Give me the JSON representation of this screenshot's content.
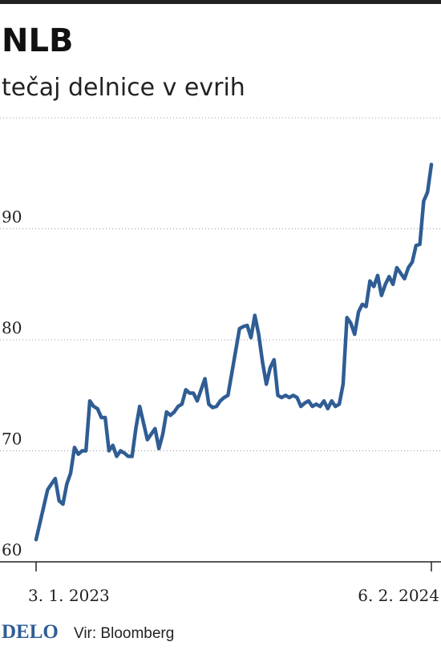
{
  "chart_data": {
    "type": "line",
    "title": "NLB",
    "subtitle": "tečaj delnice v evrih",
    "series": [
      {
        "name": "NLB",
        "color": "#2f5d94",
        "values": [
          62,
          63.5,
          65,
          66.5,
          67,
          67.5,
          65.5,
          65.2,
          67,
          68,
          70.3,
          69.7,
          70,
          70,
          74.5,
          74,
          73.8,
          73,
          73,
          70,
          70.5,
          69.5,
          70,
          69.8,
          69.5,
          69.5,
          72,
          74,
          72.5,
          71,
          71.5,
          72,
          70.2,
          71.5,
          73.5,
          73.2,
          73.5,
          74,
          74.2,
          75.5,
          75.2,
          75.2,
          74.5,
          75.5,
          76.5,
          74.2,
          73.9,
          74,
          74.5,
          74.8,
          75,
          77,
          79,
          81,
          81.2,
          81.3,
          80.2,
          82.2,
          80.5,
          78,
          76,
          77.5,
          78.2,
          75,
          74.8,
          75,
          74.8,
          75,
          74.8,
          74,
          74.3,
          74.5,
          74,
          74.2,
          74,
          74.5,
          73.8,
          74.5,
          74,
          74.2,
          76,
          82,
          81.5,
          80.5,
          82.5,
          83.2,
          83,
          85.3,
          84.8,
          85.8,
          84,
          85,
          85.7,
          85,
          86.5,
          86,
          85.5,
          86.5,
          87,
          88.5,
          88.6,
          92.5,
          93.3,
          95.8
        ]
      }
    ],
    "xlim": [
      0,
      103
    ],
    "xticks": [
      {
        "value": 0,
        "label": "3. 1. 2023"
      },
      {
        "value": 103,
        "label": "6. 2. 2024"
      }
    ],
    "ylim": [
      60,
      100
    ],
    "yticks": [
      60,
      70,
      80,
      90
    ],
    "grid": true
  },
  "footer": {
    "brand": "DELO",
    "source": "Vir: Bloomberg"
  }
}
